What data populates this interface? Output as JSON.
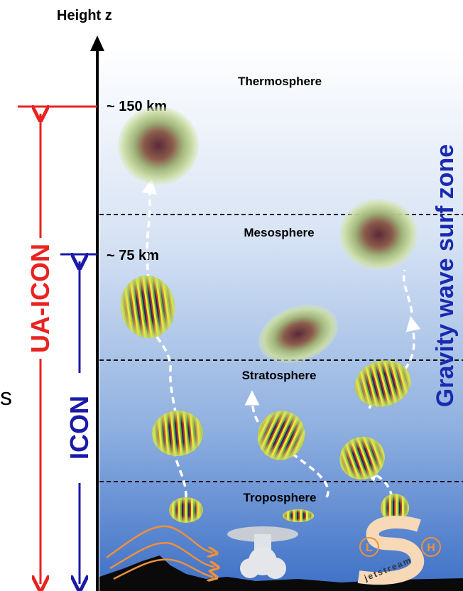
{
  "axis_label": "Height z",
  "layers": [
    {
      "label": "Thermosphere"
    },
    {
      "label": "Mesosphere"
    },
    {
      "label": "Stratosphere"
    },
    {
      "label": "Troposphere"
    }
  ],
  "altitudes": [
    "~ 150 km",
    "~ 75 km"
  ],
  "models": [
    "UA-ICON",
    "ICON"
  ],
  "zone_label": "Gravity wave surf zone",
  "edge_text": "s",
  "jetstream": {
    "label": "jetstream",
    "low": "L",
    "high": "H"
  }
}
